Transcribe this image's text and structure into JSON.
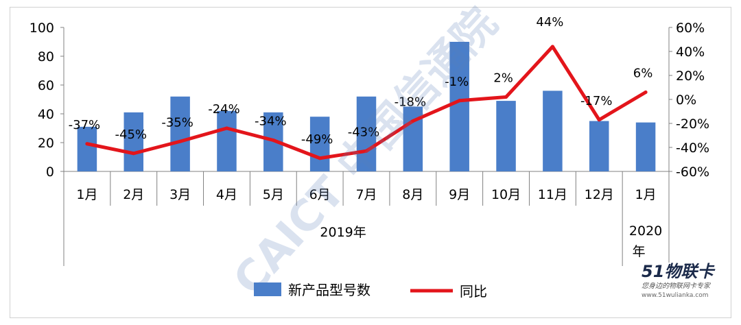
{
  "chart_data": {
    "type": "bar",
    "categories": [
      "1月",
      "2月",
      "3月",
      "4月",
      "5月",
      "6月",
      "7月",
      "8月",
      "9月",
      "10月",
      "11月",
      "12月",
      "1月"
    ],
    "groups": [
      {
        "label": "2019年",
        "count": 12
      },
      {
        "label": "2020年",
        "count": 1
      }
    ],
    "series": [
      {
        "name": "新产品型号数",
        "type": "bar",
        "axis": "left",
        "color": "#4a7ec9",
        "values": [
          31,
          41,
          52,
          42,
          41,
          38,
          52,
          45,
          90,
          49,
          56,
          35,
          34
        ]
      },
      {
        "name": "同比",
        "type": "line",
        "axis": "right",
        "color": "#e3151b",
        "values": [
          -37,
          -45,
          -35,
          -24,
          -34,
          -49,
          -43,
          -18,
          -1,
          2,
          44,
          -17,
          6
        ],
        "labels": [
          "-37%",
          "-45%",
          "-35%",
          "-24%",
          "-34%",
          "-49%",
          "-43%",
          "-18%",
          "-1%",
          "2%",
          "44%",
          "-17%",
          "6%"
        ]
      }
    ],
    "y_left": {
      "min": 0,
      "max": 100,
      "ticks": [
        0,
        20,
        40,
        60,
        80,
        100
      ]
    },
    "y_right": {
      "min": -60,
      "max": 60,
      "ticks": [
        "-60%",
        "-40%",
        "-20%",
        "0%",
        "20%",
        "40%",
        "60%"
      ]
    },
    "legend": "bottom",
    "grid": false
  },
  "watermarks": {
    "caict": "CAICT 中国信通院",
    "brand": "51物联卡",
    "brand_tagline": "您身边的物联网卡专家",
    "brand_url": "www.51wulianka.com"
  }
}
